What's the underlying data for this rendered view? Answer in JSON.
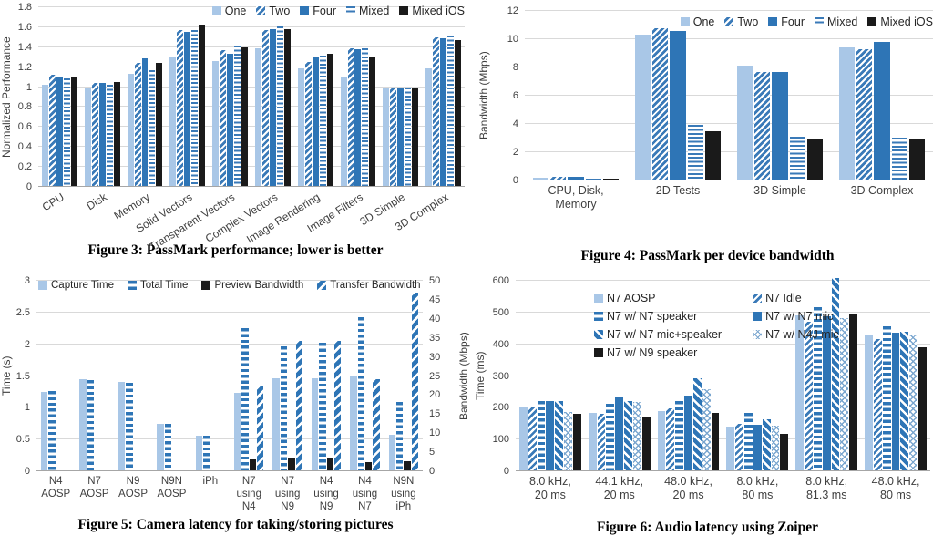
{
  "colors": {
    "light_blue": "#a9c7e7",
    "dark_blue": "#2e75b6",
    "stripe_blue": "#3a7ab8",
    "black": "#1a1a1a",
    "gridline": "#d9d9d9",
    "axis_line": "#a6a6a6",
    "text": "#3f3f3f"
  },
  "charts": [
    {
      "id": "figure3",
      "caption": "Figure 3: PassMark performance; lower is better",
      "chart_data": {
        "type": "bar",
        "title": "",
        "xlabel": "",
        "ylabel": "Normalized Performance",
        "ylim": [
          0,
          1.8
        ],
        "grid": true,
        "legend_position": "top-right",
        "categories": [
          "CPU",
          "Disk",
          "Memory",
          "Solid Vectors",
          "Transparent Vectors",
          "Complex Vectors",
          "Image Rendering",
          "Image Filters",
          "3D Simple",
          "3D Complex"
        ],
        "series": [
          {
            "name": "One",
            "pattern": "solid-light",
            "values": [
              1.02,
              1.0,
              1.13,
              1.3,
              1.26,
              1.39,
              1.19,
              1.1,
              1.0,
              1.19
            ]
          },
          {
            "name": "Two",
            "pattern": "hatch-fwd",
            "values": [
              1.12,
              1.04,
              1.24,
              1.57,
              1.37,
              1.57,
              1.25,
              1.39,
              1.0,
              1.5
            ]
          },
          {
            "name": "Four",
            "pattern": "solid-dark",
            "values": [
              1.11,
              1.04,
              1.29,
              1.55,
              1.33,
              1.58,
              1.3,
              1.38,
              1.0,
              1.49
            ]
          },
          {
            "name": "Mixed",
            "pattern": "hstripe",
            "values": [
              1.09,
              1.02,
              1.17,
              1.57,
              1.42,
              1.61,
              1.32,
              1.39,
              1.0,
              1.52
            ]
          },
          {
            "name": "Mixed iOS",
            "pattern": "solid-black",
            "values": [
              1.11,
              1.05,
              1.24,
              1.63,
              1.4,
              1.58,
              1.33,
              1.31,
              1.0,
              1.47
            ]
          }
        ]
      },
      "y_axis": {
        "title": "Normalized Performance",
        "min": 0,
        "max": 1.8,
        "step": 0.2,
        "ticks": [
          "0",
          "0.2",
          "0.4",
          "0.6",
          "0.8",
          "1",
          "1.2",
          "1.4",
          "1.6",
          "1.8"
        ]
      },
      "x_label_rotation": -32
    },
    {
      "id": "figure4",
      "caption": "Figure 4: PassMark per device bandwidth",
      "chart_data": {
        "type": "bar",
        "title": "",
        "xlabel": "",
        "ylabel": "Bandwidth (Mbps)",
        "ylim": [
          0,
          12
        ],
        "grid": true,
        "legend_position": "top-right",
        "categories": [
          "CPU, Disk, Memory",
          "2D Tests",
          "3D Simple",
          "3D Complex"
        ],
        "series": [
          {
            "name": "One",
            "pattern": "solid-light",
            "values": [
              0.22,
              10.3,
              8.1,
              9.4
            ]
          },
          {
            "name": "Two",
            "pattern": "hatch-fwd",
            "values": [
              0.25,
              10.8,
              7.65,
              9.3
            ]
          },
          {
            "name": "Four",
            "pattern": "solid-dark",
            "values": [
              0.28,
              10.55,
              7.7,
              9.8
            ]
          },
          {
            "name": "Mixed",
            "pattern": "hstripe",
            "values": [
              0.12,
              3.95,
              3.1,
              3.05
            ]
          },
          {
            "name": "Mixed iOS",
            "pattern": "solid-black",
            "values": [
              0.1,
              3.5,
              3.0,
              3.0
            ]
          }
        ]
      },
      "y_axis": {
        "title": "Bandwidth (Mbps)",
        "min": 0,
        "max": 12,
        "step": 2,
        "ticks": [
          "0",
          "2",
          "4",
          "6",
          "8",
          "10",
          "12"
        ]
      },
      "category_lines": [
        [
          "CPU, Disk,",
          "Memory"
        ],
        [
          "2D Tests"
        ],
        [
          "3D Simple"
        ],
        [
          "3D Complex"
        ]
      ],
      "x_label_rotation": 0
    },
    {
      "id": "figure5",
      "caption": "Figure 5: Camera latency for taking/storing pictures",
      "chart_data": {
        "type": "bar",
        "title": "",
        "xlabel": "",
        "ylabel": "Time (s)",
        "y2label": "Bandwidth (Mbps)",
        "ylim": [
          0,
          3
        ],
        "y2lim": [
          0,
          50
        ],
        "grid": true,
        "legend_position": "top",
        "categories": [
          "N4 AOSP",
          "N7 AOSP",
          "N9 AOSP",
          "N9N AOSP",
          "iPh",
          "N7 using N4",
          "N7 using N9",
          "N4 using N9",
          "N4 using N7",
          "N9N using iPh"
        ],
        "series": [
          {
            "name": "Capture Time",
            "pattern": "solid-light",
            "axis": "y",
            "values": [
              1.25,
              1.45,
              1.41,
              0.74,
              0.56,
              1.24,
              1.46,
              1.47,
              1.49,
              0.57
            ]
          },
          {
            "name": "Total Time",
            "pattern": "hstripe-bold",
            "axis": "y",
            "values": [
              1.26,
              1.44,
              1.39,
              0.74,
              0.56,
              2.26,
              1.97,
              2.02,
              2.43,
              1.09
            ]
          },
          {
            "name": "Preview Bandwidth",
            "pattern": "solid-black",
            "axis": "y2",
            "values": [
              0,
              0,
              0,
              0,
              0,
              3.2,
              3.3,
              3.3,
              2.5,
              2.7
            ]
          },
          {
            "name": "Transfer Bandwidth",
            "pattern": "hatch-fwd-bold",
            "axis": "y2",
            "values": [
              0,
              0,
              0,
              0,
              0,
              22.3,
              34.3,
              34.2,
              24.2,
              47
            ]
          }
        ]
      },
      "y_axis": {
        "title": "Time (s)",
        "min": 0,
        "max": 3,
        "step": 0.5,
        "ticks": [
          "0",
          "0.5",
          "1",
          "1.5",
          "2",
          "2.5",
          "3"
        ]
      },
      "y2_axis": {
        "title": "Bandwidth (Mbps)",
        "min": 0,
        "max": 50,
        "step": 5,
        "ticks": [
          "0",
          "5",
          "10",
          "15",
          "20",
          "25",
          "30",
          "35",
          "40",
          "45",
          "50"
        ]
      },
      "category_lines": [
        [
          "N4",
          "AOSP"
        ],
        [
          "N7",
          "AOSP"
        ],
        [
          "N9",
          "AOSP"
        ],
        [
          "N9N",
          "AOSP"
        ],
        [
          "iPh"
        ],
        [
          "N7",
          "using",
          "N4"
        ],
        [
          "N7",
          "using",
          "N9"
        ],
        [
          "N4",
          "using",
          "N9"
        ],
        [
          "N4",
          "using",
          "N7"
        ],
        [
          "N9N",
          "using",
          "iPh"
        ]
      ],
      "x_label_rotation": 0
    },
    {
      "id": "figure6",
      "caption": "Figure 6: Audio latency using Zoiper",
      "chart_data": {
        "type": "bar",
        "title": "",
        "xlabel": "",
        "ylabel": "Time (ms)",
        "ylim": [
          0,
          600
        ],
        "grid": true,
        "legend_position": "top-left",
        "categories": [
          "8.0 kHz, 20 ms",
          "44.1 kHz, 20 ms",
          "48.0 kHz, 20 ms",
          "8.0 kHz, 80 ms",
          "8.0 kHz, 81.3 ms",
          "48.0 kHz, 80 ms"
        ],
        "series": [
          {
            "name": "N7 AOSP",
            "pattern": "solid-light",
            "values": [
              200,
              185,
              190,
              140,
              492,
              428
            ]
          },
          {
            "name": "N7 Idle",
            "pattern": "hatch-thin",
            "values": [
              202,
              182,
              197,
              148,
              472,
              417
            ]
          },
          {
            "name": "N7 w/ N7 speaker",
            "pattern": "hstripe-bold",
            "values": [
              220,
              212,
              221,
              185,
              518,
              457
            ]
          },
          {
            "name": "N7 w/ N7 mic",
            "pattern": "solid-dark",
            "values": [
              221,
              233,
              238,
              146,
              487,
              437
            ]
          },
          {
            "name": "N7 w/ N7 mic+speaker",
            "pattern": "hatch-back",
            "values": [
              220,
              222,
              292,
              165,
              610,
              440
            ]
          },
          {
            "name": "N7 w/ N4J mic",
            "pattern": "cross",
            "values": [
              187,
              218,
              257,
              143,
              481,
              432
            ]
          },
          {
            "name": "N7 w/ N9 speaker",
            "pattern": "solid-black",
            "values": [
              181,
              171,
              183,
              119,
              497,
              390
            ]
          }
        ]
      },
      "y_axis": {
        "title": "Time (ms)",
        "min": 0,
        "max": 600,
        "step": 100,
        "ticks": [
          "0",
          "100",
          "200",
          "300",
          "400",
          "500",
          "600"
        ]
      },
      "category_lines": [
        [
          "8.0 kHz,",
          "20 ms"
        ],
        [
          "44.1 kHz,",
          "20 ms"
        ],
        [
          "48.0 kHz,",
          "20 ms"
        ],
        [
          "8.0 kHz,",
          "80 ms"
        ],
        [
          "8.0 kHz,",
          "81.3 ms"
        ],
        [
          "48.0 kHz,",
          "80 ms"
        ]
      ],
      "x_label_rotation": 0
    }
  ]
}
